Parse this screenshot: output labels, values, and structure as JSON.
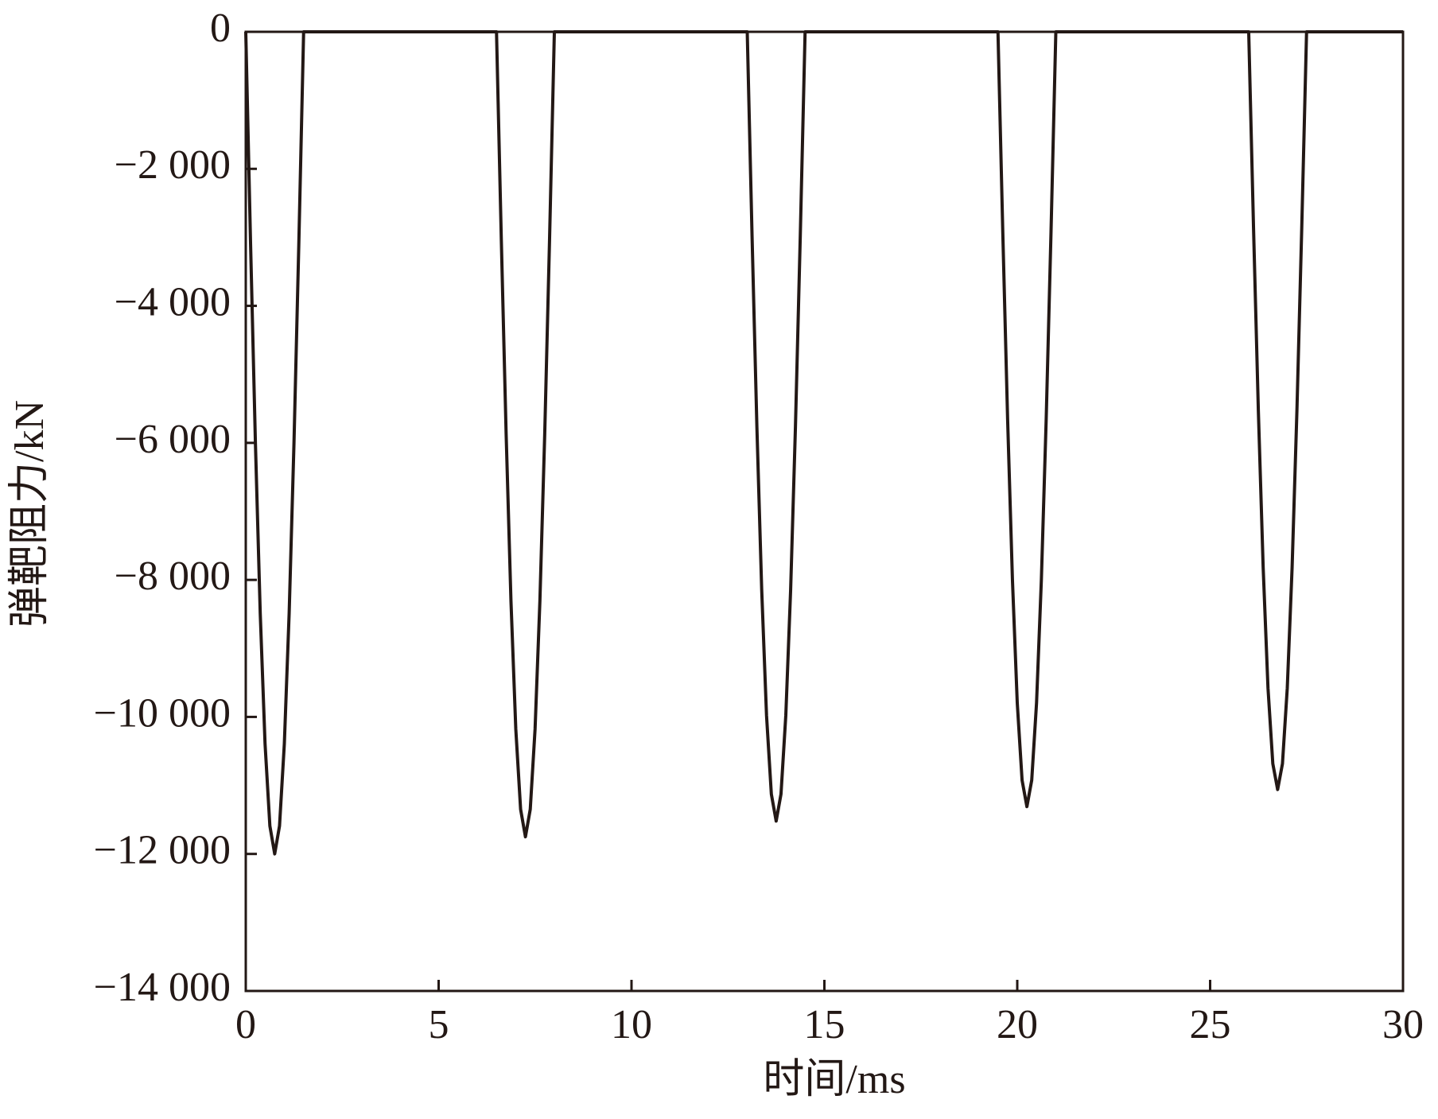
{
  "chart_data": {
    "type": "line",
    "x_label": "时间/ms",
    "y_label": "弹靶阻力/kN",
    "x": [
      0,
      0.125,
      0.25,
      0.375,
      0.5,
      0.625,
      0.75,
      0.875,
      1,
      1.125,
      1.25,
      1.375,
      1.5,
      6.5,
      6.625,
      6.75,
      6.875,
      7,
      7.125,
      7.25,
      7.375,
      7.5,
      7.625,
      7.75,
      7.875,
      8,
      13,
      13.125,
      13.25,
      13.375,
      13.5,
      13.625,
      13.75,
      13.875,
      14,
      14.125,
      14.25,
      14.375,
      14.5,
      19.5,
      19.625,
      19.75,
      19.875,
      20,
      20.125,
      20.25,
      20.375,
      20.5,
      20.625,
      20.75,
      20.875,
      21,
      26,
      26.125,
      26.25,
      26.375,
      26.5,
      26.625,
      26.75,
      26.875,
      27,
      27.125,
      27.25,
      27.375,
      27.5,
      30
    ],
    "series": [
      {
        "color": "#231815",
        "values": [
          0,
          -3106,
          -6000,
          -8485,
          -10392,
          -11591,
          -12000,
          -11591,
          -10392,
          -8485,
          -6000,
          -3106,
          0,
          0,
          -3041,
          -5875,
          -8309,
          -10176,
          -11349,
          -11750,
          -11349,
          -10176,
          -8309,
          -5875,
          -3041,
          0,
          0,
          -2981,
          -5760,
          -8146,
          -9977,
          -11127,
          -11520,
          -11127,
          -9977,
          -8146,
          -5760,
          -2981,
          0,
          0,
          -2927,
          -5655,
          -7997,
          -9795,
          -10924,
          -11310,
          -10924,
          -9795,
          -7997,
          -5655,
          -2927,
          0,
          0,
          -2862,
          -5530,
          -7821,
          -9578,
          -10683,
          -11060,
          -10683,
          -9578,
          -7821,
          -5530,
          -2862,
          0,
          0
        ]
      }
    ],
    "xlim": [
      0,
      30
    ],
    "xticks": [
      0,
      5,
      10,
      15,
      20,
      25,
      30
    ],
    "ylim": [
      -14000,
      0
    ],
    "yticks": [
      {
        "value": -14000,
        "label": "−14 000"
      },
      {
        "value": -12000,
        "label": "−12 000"
      },
      {
        "value": -10000,
        "label": "−10 000"
      },
      {
        "value": -8000,
        "label": "−8 000"
      },
      {
        "value": -6000,
        "label": "−6 000"
      },
      {
        "value": -4000,
        "label": "−4 000"
      },
      {
        "value": -2000,
        "label": "−2 000"
      },
      0
    ],
    "grid": false
  }
}
